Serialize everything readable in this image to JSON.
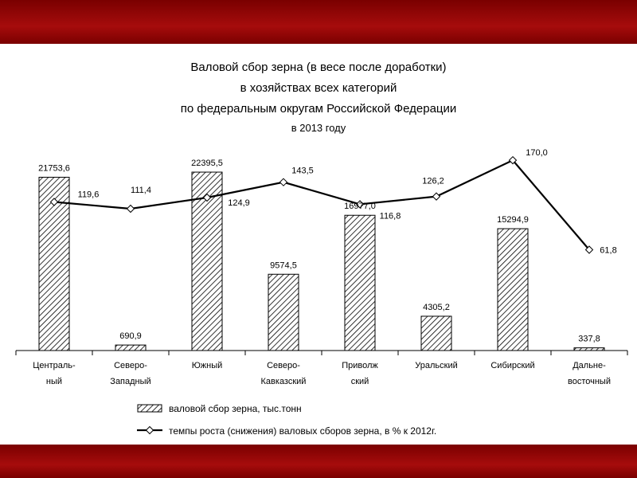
{
  "chart_data": {
    "type": "bar",
    "title_lines": [
      "Валовой сбор зерна (в весе после доработки)",
      "в хозяйствах всех категорий",
      "по федеральным округам Российской Федерации"
    ],
    "subtitle": "в 2013 году",
    "categories": [
      [
        "Централь-",
        "ный"
      ],
      [
        "Северо-",
        "Западный"
      ],
      [
        "Южный"
      ],
      [
        "Северо-",
        "Кавказский"
      ],
      [
        "Приволж",
        "ский"
      ],
      [
        "Уральский"
      ],
      [
        "Сибирский"
      ],
      [
        "Дальне-",
        "восточный"
      ]
    ],
    "series": [
      {
        "name": "валовой сбор зерна, тыс.тонн",
        "kind": "bar",
        "values": [
          21753.6,
          690.9,
          22395.5,
          9574.5,
          16977.0,
          4305.2,
          15294.9,
          337.8
        ],
        "labels": [
          "21753,6",
          "690,9",
          "22395,5",
          "9574,5",
          "16977,0",
          "4305,2",
          "15294,9",
          "337,8"
        ],
        "ylim": [
          0,
          27000
        ]
      },
      {
        "name": "темпы роста (снижения) валовых сборов зерна, в % к 2012г.",
        "kind": "line",
        "values": [
          119.6,
          111.4,
          124.9,
          143.5,
          116.8,
          126.2,
          170.0,
          61.8
        ],
        "labels": [
          "119,6",
          "111,4",
          "124,9",
          "143,5",
          "116,8",
          "126,2",
          "170,0",
          "61,8"
        ],
        "ylim": [
          -60,
          200
        ]
      }
    ],
    "legend": "bottom",
    "grid": false
  }
}
